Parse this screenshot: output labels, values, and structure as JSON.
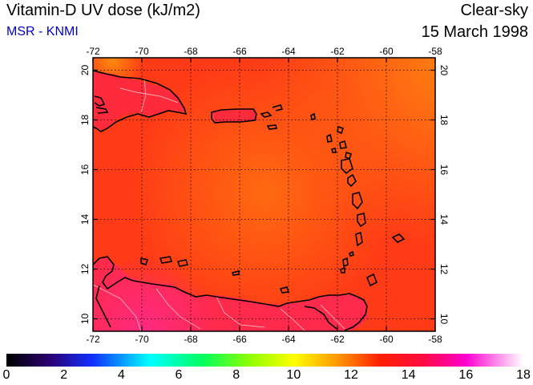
{
  "header": {
    "title": "Vitamin-D UV dose (kJ/m2)",
    "credit": "MSR - KNMI",
    "condition": "Clear-sky",
    "date": "15 March 1998"
  },
  "map": {
    "lon_range": [
      -72,
      -58
    ],
    "lat_range": [
      9.5,
      20.5
    ],
    "lon_ticks": [
      "-72",
      "-70",
      "-68",
      "-66",
      "-64",
      "-62",
      "-60",
      "-58"
    ],
    "lat_ticks": [
      "10",
      "12",
      "14",
      "16",
      "18",
      "20"
    ],
    "grid": "dotted",
    "field_colors": {
      "low": "#ff3a14",
      "mid": "#ff5a10",
      "high": "#ff7a0e",
      "land": "#ff2a3a",
      "peak": "#ff2a78"
    }
  },
  "colorbar": {
    "min": 0,
    "max": 18,
    "labels": [
      "0",
      "2",
      "4",
      "6",
      "8",
      "10",
      "12",
      "14",
      "16",
      "18"
    ],
    "stops": [
      {
        "v": 0,
        "c": "#000000"
      },
      {
        "v": 1.5,
        "c": "#2a0070"
      },
      {
        "v": 3,
        "c": "#1030ff"
      },
      {
        "v": 5,
        "c": "#00ffff"
      },
      {
        "v": 6.8,
        "c": "#00ff60"
      },
      {
        "v": 8.5,
        "c": "#90ff00"
      },
      {
        "v": 10,
        "c": "#ffff00"
      },
      {
        "v": 11.5,
        "c": "#ff9a00"
      },
      {
        "v": 13,
        "c": "#ff2000"
      },
      {
        "v": 14.5,
        "c": "#ff0a40"
      },
      {
        "v": 16,
        "c": "#ff00d0"
      },
      {
        "v": 18,
        "c": "#ffffff"
      }
    ]
  }
}
